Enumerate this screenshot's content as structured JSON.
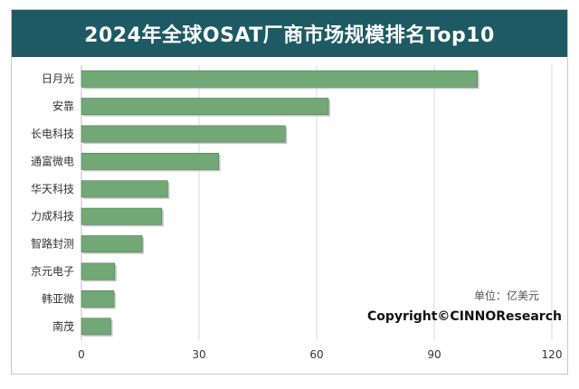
{
  "chart_data": {
    "type": "bar",
    "orientation": "horizontal",
    "title": "2024年全球OSAT厂商市场规模排名Top10",
    "categories": [
      "日月光",
      "安靠",
      "长电科技",
      "通富微电",
      "华天科技",
      "力成科技",
      "智路封测",
      "京元电子",
      "韩亚微",
      "南茂"
    ],
    "values": [
      101,
      63,
      52,
      35,
      22,
      20.5,
      15.5,
      8.5,
      8.3,
      7.5
    ],
    "xlim": [
      0,
      120
    ],
    "xticks": [
      0,
      30,
      60,
      90,
      120
    ],
    "grid": true,
    "unit_label": "单位：亿美元",
    "source": "Copyright©CINNOResearch"
  },
  "colors": {
    "title_background": "#1d5a63",
    "bar": "#72a876",
    "bar_border": "#4d7d52",
    "grid": "#d9d9d9"
  }
}
